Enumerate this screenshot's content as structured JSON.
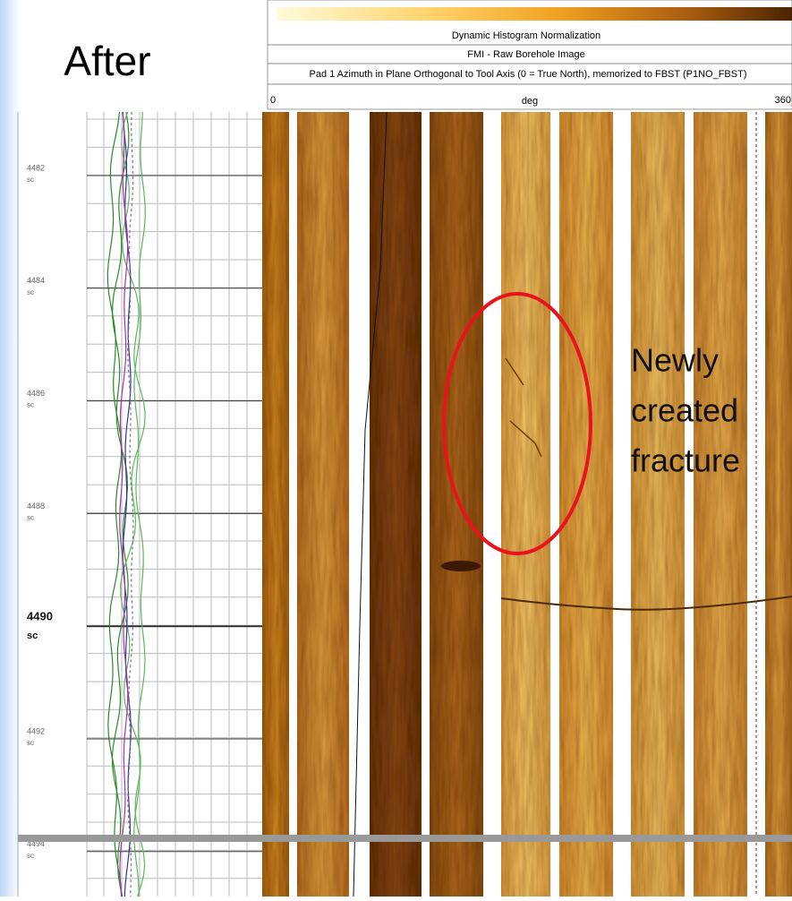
{
  "slide": {
    "title": "After",
    "annotation": [
      "Newly",
      "created",
      "fracture"
    ]
  },
  "header": {
    "lines": [
      "Dynamic Histogram Normalization",
      "FMI - Raw Borehole Image",
      "Pad 1 Azimuth in Plane Orthogonal to Tool Axis (0 = True North), memorized to FBST (P1NO_FBST)"
    ],
    "scale": {
      "min": "0",
      "unit": "deg",
      "max": "360"
    }
  },
  "depth_track": {
    "labels": [
      {
        "depth": "4482",
        "unit": "sc"
      },
      {
        "depth": "4484",
        "unit": "sc"
      },
      {
        "depth": "4486",
        "unit": "sc"
      },
      {
        "depth": "4488",
        "unit": "sc"
      },
      {
        "depth": "4490",
        "unit": "sc"
      },
      {
        "depth": "4492",
        "unit": "sc"
      },
      {
        "depth": "4494",
        "unit": "sc"
      }
    ]
  }
}
